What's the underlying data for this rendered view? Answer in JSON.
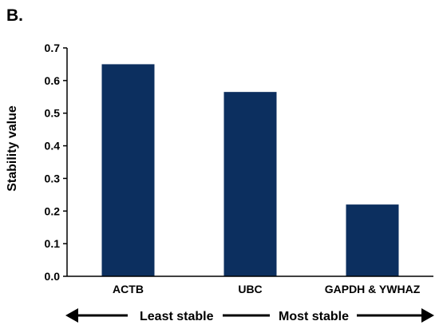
{
  "panel_label": "B.",
  "colors": {
    "bar": "#0c2f5f",
    "axis": "#000000"
  },
  "chart_data": {
    "type": "bar",
    "categories": [
      "ACTB",
      "UBC",
      "GAPDH & YWHAZ"
    ],
    "values": [
      0.65,
      0.565,
      0.22
    ],
    "ylabel": "Stability value",
    "xlabel": "",
    "title": "",
    "ylim": [
      0,
      0.7
    ],
    "yticks": [
      "0.0",
      "0.1",
      "0.2",
      "0.3",
      "0.4",
      "0.5",
      "0.6",
      "0.7"
    ],
    "grid": false,
    "annotations": {
      "left": "Least stable",
      "right": "Most stable"
    }
  }
}
